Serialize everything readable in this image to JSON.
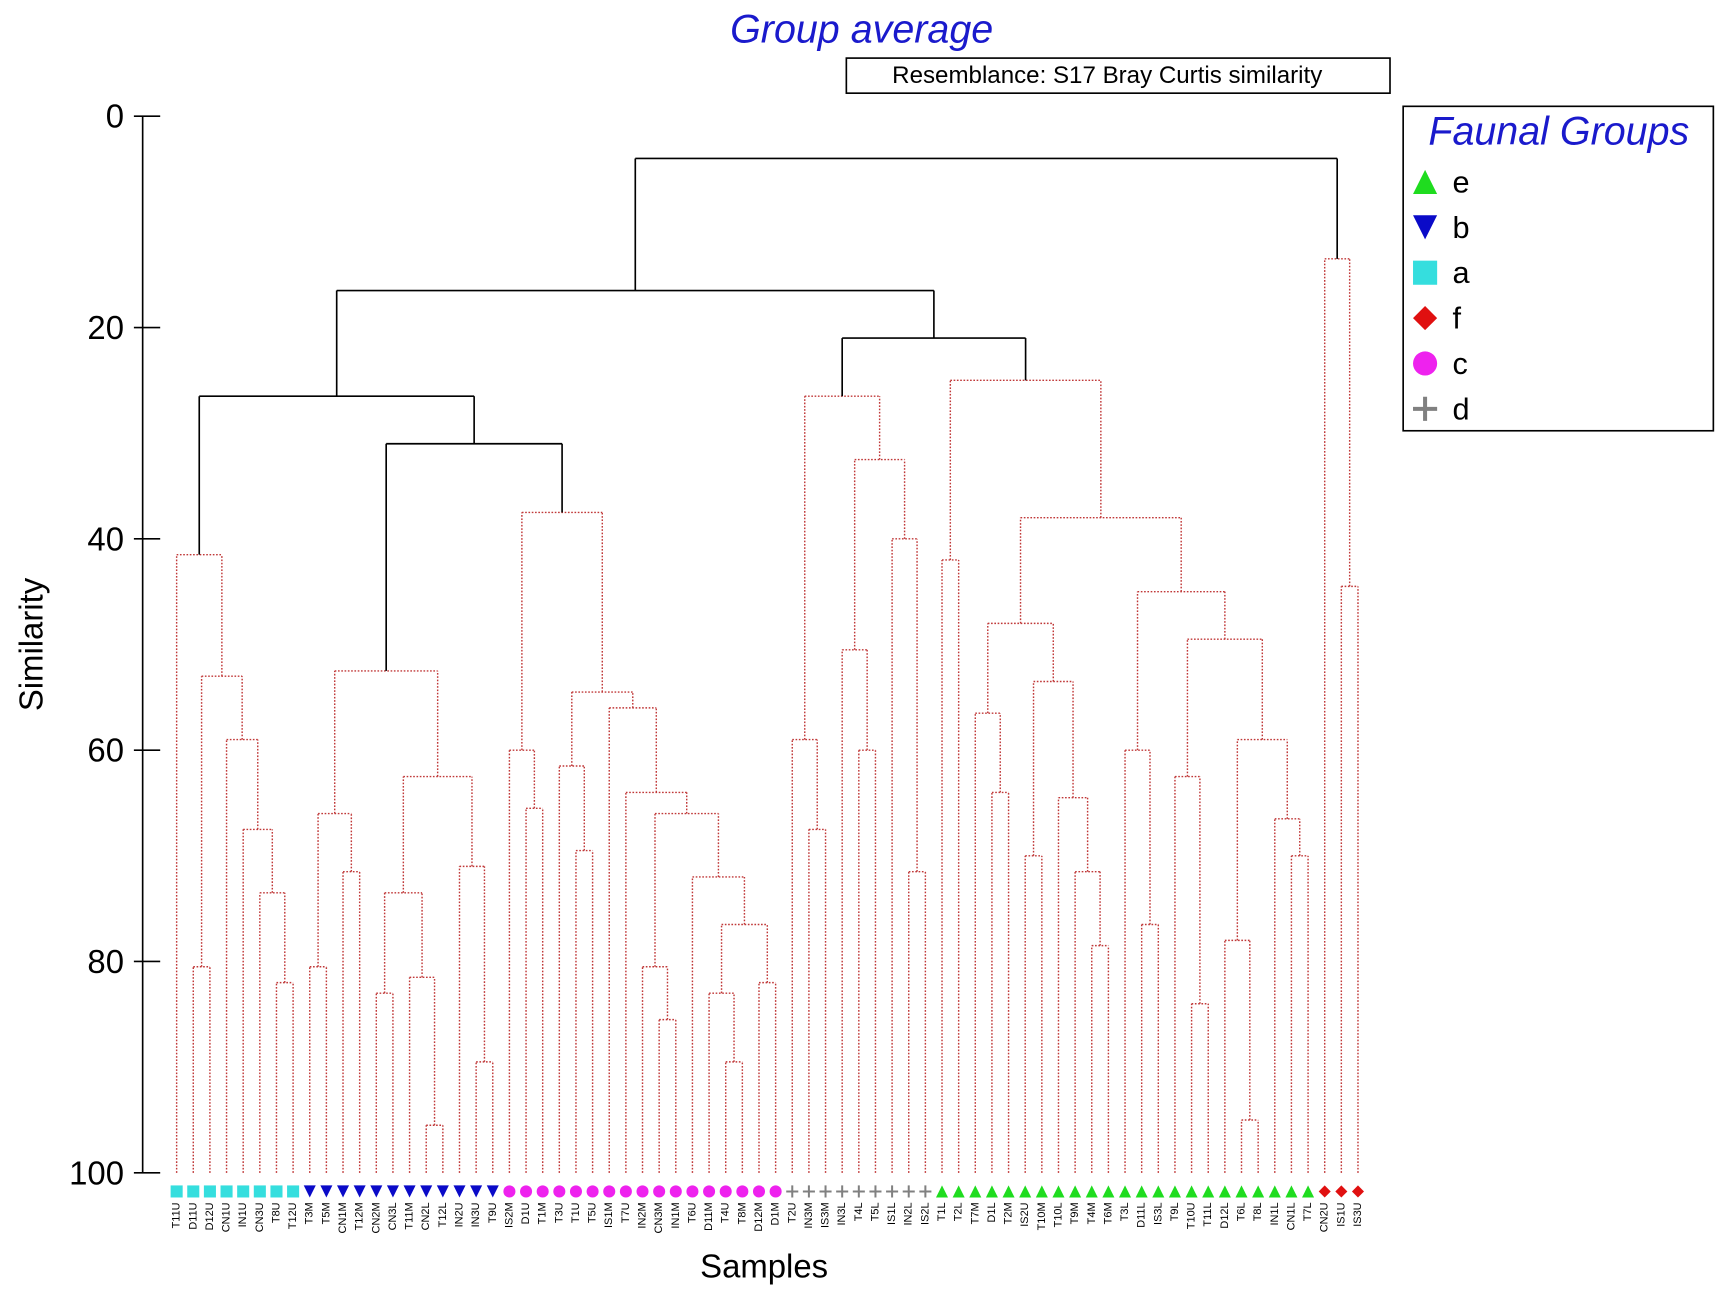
{
  "chart_data": {
    "type": "dendrogram",
    "title": "Group average",
    "subtitle": "Resemblance: S17 Bray Curtis similarity",
    "ylabel": "Similarity",
    "xlabel": "Samples",
    "legend_title": "Faunal Groups",
    "legend_position": "upper right",
    "ylim": [
      0,
      100
    ],
    "y_reversed": true,
    "yticks": [
      0,
      20,
      40,
      60,
      80,
      100
    ],
    "groups": [
      {
        "name": "e",
        "marker": "triangle-up",
        "color": "#1fdc1f"
      },
      {
        "name": "b",
        "marker": "triangle-down",
        "color": "#0a0ac8"
      },
      {
        "name": "a",
        "marker": "square",
        "color": "#35dede"
      },
      {
        "name": "f",
        "marker": "diamond",
        "color": "#e01010"
      },
      {
        "name": "c",
        "marker": "circle",
        "color": "#ee22ee"
      },
      {
        "name": "d",
        "marker": "plus",
        "color": "#808080"
      }
    ],
    "leaves": [
      {
        "label": "T11U",
        "group": "a"
      },
      {
        "label": "D11U",
        "group": "a"
      },
      {
        "label": "D12U",
        "group": "a"
      },
      {
        "label": "CN1U",
        "group": "a"
      },
      {
        "label": "IN1U",
        "group": "a"
      },
      {
        "label": "CN3U",
        "group": "a"
      },
      {
        "label": "T8U",
        "group": "a"
      },
      {
        "label": "T12U",
        "group": "a"
      },
      {
        "label": "T3M",
        "group": "b"
      },
      {
        "label": "T5M",
        "group": "b"
      },
      {
        "label": "CN1M",
        "group": "b"
      },
      {
        "label": "T12M",
        "group": "b"
      },
      {
        "label": "CN2M",
        "group": "b"
      },
      {
        "label": "CN3L",
        "group": "b"
      },
      {
        "label": "T11M",
        "group": "b"
      },
      {
        "label": "CN2L",
        "group": "b"
      },
      {
        "label": "T12L",
        "group": "b"
      },
      {
        "label": "IN2U",
        "group": "b"
      },
      {
        "label": "IN3U",
        "group": "b"
      },
      {
        "label": "T9U",
        "group": "b"
      },
      {
        "label": "IS2M",
        "group": "c"
      },
      {
        "label": "D1U",
        "group": "c"
      },
      {
        "label": "T1M",
        "group": "c"
      },
      {
        "label": "T3U",
        "group": "c"
      },
      {
        "label": "T1U",
        "group": "c"
      },
      {
        "label": "T5U",
        "group": "c"
      },
      {
        "label": "IS1M",
        "group": "c"
      },
      {
        "label": "T7U",
        "group": "c"
      },
      {
        "label": "IN2M",
        "group": "c"
      },
      {
        "label": "CN3M",
        "group": "c"
      },
      {
        "label": "IN1M",
        "group": "c"
      },
      {
        "label": "T6U",
        "group": "c"
      },
      {
        "label": "D11M",
        "group": "c"
      },
      {
        "label": "T4U",
        "group": "c"
      },
      {
        "label": "T8M",
        "group": "c"
      },
      {
        "label": "D12M",
        "group": "c"
      },
      {
        "label": "D1M",
        "group": "c"
      },
      {
        "label": "T2U",
        "group": "d"
      },
      {
        "label": "IN3M",
        "group": "d"
      },
      {
        "label": "IS3M",
        "group": "d"
      },
      {
        "label": "IN3L",
        "group": "d"
      },
      {
        "label": "T4L",
        "group": "d"
      },
      {
        "label": "T5L",
        "group": "d"
      },
      {
        "label": "IS1L",
        "group": "d"
      },
      {
        "label": "IN2L",
        "group": "d"
      },
      {
        "label": "IS2L",
        "group": "d"
      },
      {
        "label": "T1L",
        "group": "e"
      },
      {
        "label": "T2L",
        "group": "e"
      },
      {
        "label": "T7M",
        "group": "e"
      },
      {
        "label": "D1L",
        "group": "e"
      },
      {
        "label": "T2M",
        "group": "e"
      },
      {
        "label": "IS2U",
        "group": "e"
      },
      {
        "label": "T10M",
        "group": "e"
      },
      {
        "label": "T10L",
        "group": "e"
      },
      {
        "label": "T9M",
        "group": "e"
      },
      {
        "label": "T4M",
        "group": "e"
      },
      {
        "label": "T6M",
        "group": "e"
      },
      {
        "label": "T3L",
        "group": "e"
      },
      {
        "label": "D11L",
        "group": "e"
      },
      {
        "label": "IS3L",
        "group": "e"
      },
      {
        "label": "T9L",
        "group": "e"
      },
      {
        "label": "T10U",
        "group": "e"
      },
      {
        "label": "T11L",
        "group": "e"
      },
      {
        "label": "D12L",
        "group": "e"
      },
      {
        "label": "T6L",
        "group": "e"
      },
      {
        "label": "T8L",
        "group": "e"
      },
      {
        "label": "IN1L",
        "group": "e"
      },
      {
        "label": "CN1L",
        "group": "e"
      },
      {
        "label": "T7L",
        "group": "e"
      },
      {
        "label": "CN2U",
        "group": "f"
      },
      {
        "label": "IS1U",
        "group": "f"
      },
      {
        "label": "IS3U",
        "group": "f"
      }
    ],
    "merges": [
      {
        "left": 6,
        "right": 7,
        "similarity": 82
      },
      {
        "left": 5,
        "right": 72,
        "similarity": 73.5
      },
      {
        "left": 4,
        "right": 73,
        "similarity": 67.5
      },
      {
        "left": 3,
        "right": 74,
        "similarity": 59
      },
      {
        "left": 1,
        "right": 2,
        "similarity": 80.5
      },
      {
        "left": 76,
        "right": 75,
        "similarity": 53
      },
      {
        "left": 0,
        "right": 77,
        "similarity": 41.5
      },
      {
        "left": 8,
        "right": 9,
        "similarity": 80.5
      },
      {
        "left": 10,
        "right": 11,
        "similarity": 71.5
      },
      {
        "left": 79,
        "right": 80,
        "similarity": 66
      },
      {
        "left": 12,
        "right": 13,
        "similarity": 83
      },
      {
        "left": 15,
        "right": 16,
        "similarity": 95.5
      },
      {
        "left": 14,
        "right": 83,
        "similarity": 81.5
      },
      {
        "left": 82,
        "right": 84,
        "similarity": 73.5
      },
      {
        "left": 18,
        "right": 19,
        "similarity": 89.5
      },
      {
        "left": 17,
        "right": 86,
        "similarity": 71
      },
      {
        "left": 85,
        "right": 87,
        "similarity": 62.5
      },
      {
        "left": 81,
        "right": 88,
        "similarity": 52.5
      },
      {
        "left": 21,
        "right": 22,
        "similarity": 65.5
      },
      {
        "left": 20,
        "right": 90,
        "similarity": 60
      },
      {
        "left": 24,
        "right": 25,
        "similarity": 69.5
      },
      {
        "left": 23,
        "right": 92,
        "similarity": 61.5
      },
      {
        "left": 29,
        "right": 30,
        "similarity": 85.5
      },
      {
        "left": 28,
        "right": 94,
        "similarity": 80.5
      },
      {
        "left": 33,
        "right": 34,
        "similarity": 89.5
      },
      {
        "left": 32,
        "right": 96,
        "similarity": 83
      },
      {
        "left": 35,
        "right": 36,
        "similarity": 82
      },
      {
        "left": 97,
        "right": 98,
        "similarity": 76.5
      },
      {
        "left": 31,
        "right": 99,
        "similarity": 72
      },
      {
        "left": 95,
        "right": 100,
        "similarity": 66
      },
      {
        "left": 27,
        "right": 101,
        "similarity": 64
      },
      {
        "left": 26,
        "right": 102,
        "similarity": 56
      },
      {
        "left": 93,
        "right": 103,
        "similarity": 54.5
      },
      {
        "left": 91,
        "right": 104,
        "similarity": 37.5
      },
      {
        "left": 89,
        "right": 105,
        "similarity": 31,
        "significant": true
      },
      {
        "left": 78,
        "right": 106,
        "similarity": 26.5,
        "significant": true
      },
      {
        "left": 38,
        "right": 39,
        "similarity": 67.5
      },
      {
        "left": 37,
        "right": 108,
        "similarity": 59
      },
      {
        "left": 41,
        "right": 42,
        "similarity": 60
      },
      {
        "left": 40,
        "right": 110,
        "similarity": 50.5
      },
      {
        "left": 44,
        "right": 45,
        "similarity": 71.5
      },
      {
        "left": 43,
        "right": 112,
        "similarity": 40
      },
      {
        "left": 111,
        "right": 113,
        "similarity": 32.5
      },
      {
        "left": 109,
        "right": 114,
        "similarity": 26.5
      },
      {
        "left": 46,
        "right": 47,
        "similarity": 42
      },
      {
        "left": 49,
        "right": 50,
        "similarity": 64
      },
      {
        "left": 48,
        "right": 117,
        "similarity": 56.5
      },
      {
        "left": 51,
        "right": 52,
        "similarity": 70
      },
      {
        "left": 55,
        "right": 56,
        "similarity": 78.5
      },
      {
        "left": 54,
        "right": 120,
        "similarity": 71.5
      },
      {
        "left": 53,
        "right": 121,
        "similarity": 64.5
      },
      {
        "left": 119,
        "right": 122,
        "similarity": 53.5
      },
      {
        "left": 118,
        "right": 123,
        "similarity": 48
      },
      {
        "left": 58,
        "right": 59,
        "similarity": 76.5
      },
      {
        "left": 57,
        "right": 125,
        "similarity": 60
      },
      {
        "left": 61,
        "right": 62,
        "similarity": 84
      },
      {
        "left": 60,
        "right": 127,
        "similarity": 62.5
      },
      {
        "left": 64,
        "right": 65,
        "similarity": 95
      },
      {
        "left": 63,
        "right": 129,
        "similarity": 78
      },
      {
        "left": 67,
        "right": 68,
        "similarity": 70
      },
      {
        "left": 66,
        "right": 131,
        "similarity": 66.5
      },
      {
        "left": 130,
        "right": 132,
        "similarity": 59
      },
      {
        "left": 128,
        "right": 133,
        "similarity": 49.5
      },
      {
        "left": 126,
        "right": 134,
        "similarity": 45
      },
      {
        "left": 124,
        "right": 135,
        "similarity": 38
      },
      {
        "left": 116,
        "right": 136,
        "similarity": 25
      },
      {
        "left": 115,
        "right": 137,
        "similarity": 21,
        "significant": true
      },
      {
        "left": 107,
        "right": 138,
        "similarity": 16.5,
        "significant": true
      },
      {
        "left": 70,
        "right": 71,
        "similarity": 44.5
      },
      {
        "left": 69,
        "right": 140,
        "similarity": 13.5
      },
      {
        "left": 139,
        "right": 141,
        "similarity": 4,
        "significant": true
      }
    ]
  }
}
